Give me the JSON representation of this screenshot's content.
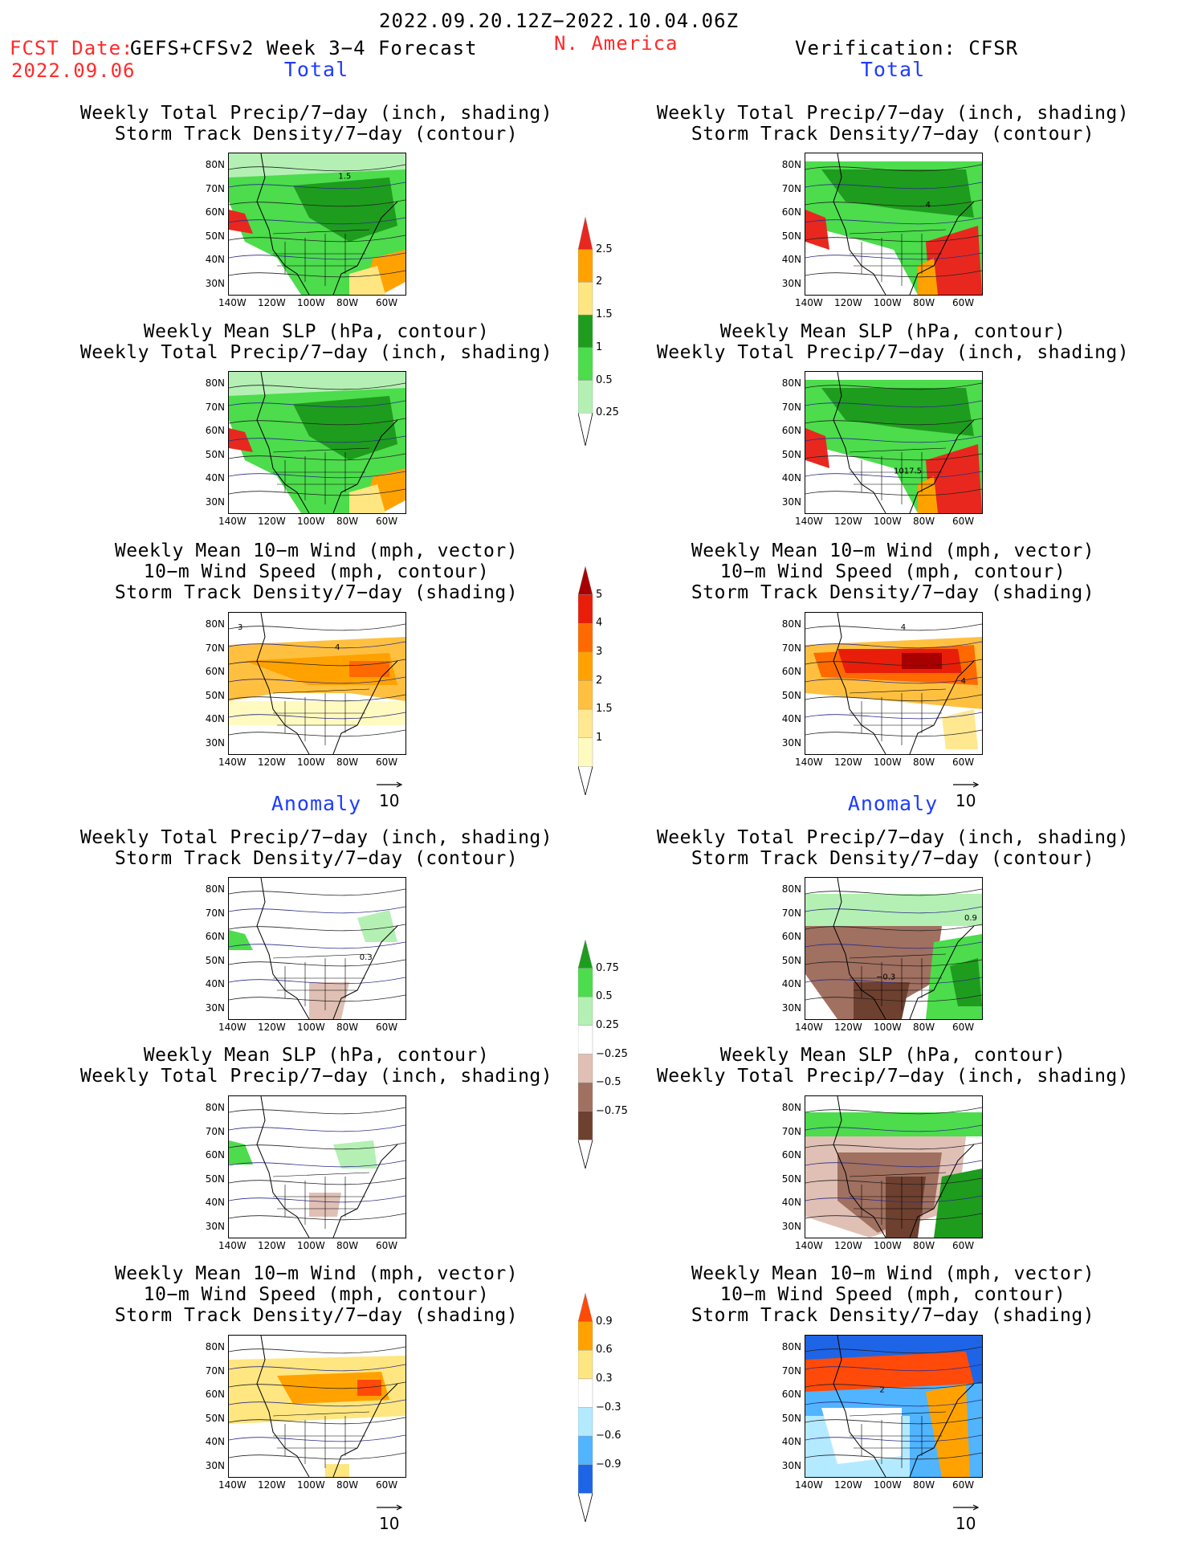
{
  "header": {
    "period": "2022.09.20.12Z−2022.10.04.06Z",
    "fcst_label": "FCST Date:",
    "model": "GEFS+CFSv2 Week 3−4 Forecast",
    "fcst_date": "2022.09.06",
    "region": "N. America",
    "verification": "Verification: CFSR"
  },
  "sections": {
    "total": "Total",
    "anomaly": "Anomaly"
  },
  "titles": {
    "precip_storm": [
      "Weekly Total Precip/7−day (inch, shading)",
      "Storm Track Density/7−day (contour)"
    ],
    "slp_precip": [
      "Weekly Mean SLP (hPa, contour)",
      "Weekly Total Precip/7−day (inch, shading)"
    ],
    "wind_storm": [
      "Weekly Mean 10−m Wind (mph, vector)",
      "10−m Wind Speed (mph, contour)",
      "Storm Track Density/7−day (shading)"
    ]
  },
  "axes": {
    "lat_labels": [
      "80N",
      "70N",
      "60N",
      "50N",
      "40N",
      "30N"
    ],
    "lon_labels": [
      "140W",
      "120W",
      "100W",
      "80W",
      "60W"
    ]
  },
  "vector_ref": "10",
  "map_labels": {
    "fcst_total_storm": "1.5",
    "obs_total_storm": "4",
    "obs_total_slp": "1017.5",
    "fcst_total_wind": "4",
    "fcst_total_wind_b": "3",
    "obs_total_wind": "4",
    "obs_total_wind_b": "4",
    "fcst_anom_storm": "0.3",
    "obs_anom_storm": "0.9",
    "obs_anom_storm_b": "−0.3",
    "obs_anom_wind": "2"
  },
  "colorbars": {
    "precip_total": {
      "labels": [
        "2.5",
        "2",
        "1.5",
        "1",
        "0.5",
        "0.25"
      ],
      "colors": [
        "#e8281e",
        "#ffa200",
        "#ffe680",
        "#1e9c1e",
        "#4cdc4c",
        "#b4f0b4"
      ]
    },
    "storm_total": {
      "labels": [
        "5",
        "4",
        "3",
        "2",
        "1.5",
        "1"
      ],
      "colors": [
        "#a80000",
        "#e81e0a",
        "#ff6a00",
        "#ffa200",
        "#ffc040",
        "#ffe890",
        "#fffac0"
      ]
    },
    "precip_anom": {
      "labels": [
        "0.75",
        "0.5",
        "0.25",
        "−0.25",
        "−0.5",
        "−0.75"
      ],
      "colors": [
        "#1e9c1e",
        "#4cdc4c",
        "#b4f0b4",
        "#ffffff",
        "#e0c0b4",
        "#a07060",
        "#6e4030"
      ]
    },
    "storm_anom": {
      "labels": [
        "0.9",
        "0.6",
        "0.3",
        "−0.3",
        "−0.6",
        "−0.9"
      ],
      "colors": [
        "#ff4a0a",
        "#ffa200",
        "#ffe680",
        "#ffffff",
        "#b4eaff",
        "#50b4ff",
        "#1e64e6"
      ]
    }
  }
}
